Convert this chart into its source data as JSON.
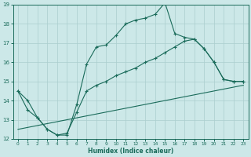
{
  "xlabel": "Humidex (Indice chaleur)",
  "xlim": [
    -0.5,
    23.5
  ],
  "ylim": [
    12,
    19
  ],
  "xticks": [
    0,
    1,
    2,
    3,
    4,
    5,
    6,
    7,
    8,
    9,
    10,
    11,
    12,
    13,
    14,
    15,
    16,
    17,
    18,
    19,
    20,
    21,
    22,
    23
  ],
  "yticks": [
    12,
    13,
    14,
    15,
    16,
    17,
    18,
    19
  ],
  "bg_color": "#cce8e8",
  "grid_color": "#aacece",
  "line_color": "#1a6b5a",
  "line1_x": [
    0,
    1,
    2,
    3,
    4,
    5,
    6,
    7,
    8,
    9,
    10,
    11,
    12,
    13,
    14,
    15,
    16,
    17,
    18,
    19,
    20,
    21,
    22,
    23
  ],
  "line1_y": [
    14.5,
    14.0,
    13.1,
    12.5,
    12.2,
    12.2,
    13.8,
    15.9,
    16.8,
    16.9,
    17.4,
    18.0,
    18.2,
    18.3,
    18.5,
    19.1,
    17.5,
    17.3,
    17.2,
    16.7,
    16.0,
    15.1,
    15.0,
    15.0
  ],
  "line2_x": [
    0,
    1,
    2,
    3,
    4,
    5,
    6,
    7,
    8,
    9,
    10,
    11,
    12,
    13,
    14,
    15,
    16,
    17,
    18,
    19,
    20,
    21,
    22,
    23
  ],
  "line2_y": [
    14.5,
    13.5,
    13.1,
    12.5,
    12.2,
    12.3,
    13.4,
    14.5,
    14.8,
    15.0,
    15.3,
    15.5,
    15.7,
    16.0,
    16.2,
    16.5,
    16.8,
    17.1,
    17.2,
    16.7,
    16.0,
    15.1,
    15.0,
    15.0
  ],
  "line3_x": [
    0,
    23
  ],
  "line3_y": [
    12.5,
    14.8
  ],
  "figsize": [
    3.2,
    2.0
  ],
  "dpi": 100
}
